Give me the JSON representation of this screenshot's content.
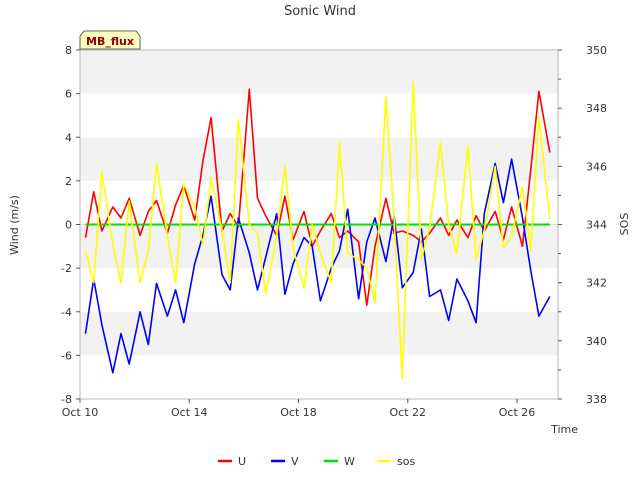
{
  "chart_data": {
    "type": "line",
    "title": "Sonic Wind",
    "site_label": "MB_flux",
    "xlabel": "Time",
    "ylabel": "Wind (m/s)",
    "ylabel_right": "SOS",
    "x_domain_days": [
      0,
      17.5
    ],
    "x_ticks": [
      {
        "day": 0,
        "label": "Oct 10"
      },
      {
        "day": 4,
        "label": "Oct 14"
      },
      {
        "day": 8,
        "label": "Oct 18"
      },
      {
        "day": 12,
        "label": "Oct 22"
      },
      {
        "day": 16,
        "label": "Oct 26"
      }
    ],
    "ylim": [
      -8,
      8
    ],
    "y_ticks": [
      -8,
      -6,
      -4,
      -2,
      0,
      2,
      4,
      6,
      8
    ],
    "ylim_right": [
      338,
      350
    ],
    "y_ticks_right": [
      338,
      340,
      342,
      344,
      346,
      348,
      350
    ],
    "series": [
      {
        "name": "U",
        "axis": "left",
        "color": "#ff0000",
        "x": [
          0.2,
          0.5,
          0.8,
          1.2,
          1.5,
          1.8,
          2.2,
          2.5,
          2.8,
          3.2,
          3.5,
          3.8,
          4.2,
          4.5,
          4.8,
          5.2,
          5.5,
          5.8,
          6.2,
          6.5,
          6.8,
          7.2,
          7.5,
          7.8,
          8.2,
          8.5,
          8.8,
          9.2,
          9.5,
          9.8,
          10.2,
          10.5,
          10.8,
          11.2,
          11.5,
          11.8,
          12.2,
          12.5,
          12.8,
          13.2,
          13.5,
          13.8,
          14.2,
          14.5,
          14.8,
          15.2,
          15.5,
          15.8,
          16.2,
          16.5,
          16.8,
          17.2
        ],
        "values": [
          -0.6,
          1.5,
          -0.3,
          0.8,
          0.3,
          1.2,
          -0.5,
          0.6,
          1.1,
          -0.4,
          0.9,
          1.8,
          0.2,
          2.9,
          4.9,
          -0.3,
          0.5,
          -0.1,
          6.2,
          1.2,
          0.4,
          -0.5,
          1.3,
          -0.7,
          0.6,
          -1.0,
          -0.3,
          0.5,
          -0.6,
          -0.3,
          -0.8,
          -3.7,
          -1.0,
          1.2,
          -0.4,
          -0.3,
          -0.5,
          -0.8,
          -0.4,
          0.3,
          -0.5,
          0.2,
          -0.6,
          0.4,
          -0.3,
          0.6,
          -0.7,
          0.8,
          -1.0,
          2.5,
          6.1,
          3.3
        ]
      },
      {
        "name": "V",
        "axis": "left",
        "color": "#0000ff",
        "x": [
          0.2,
          0.5,
          0.8,
          1.2,
          1.5,
          1.8,
          2.2,
          2.5,
          2.8,
          3.2,
          3.5,
          3.8,
          4.2,
          4.5,
          4.8,
          5.2,
          5.5,
          5.8,
          6.2,
          6.5,
          6.8,
          7.2,
          7.5,
          7.8,
          8.2,
          8.5,
          8.8,
          9.2,
          9.5,
          9.8,
          10.2,
          10.5,
          10.8,
          11.2,
          11.5,
          11.8,
          12.2,
          12.5,
          12.8,
          13.2,
          13.5,
          13.8,
          14.2,
          14.5,
          14.8,
          15.2,
          15.5,
          15.8,
          16.2,
          16.5,
          16.8,
          17.2
        ],
        "values": [
          -5.0,
          -2.5,
          -4.6,
          -6.8,
          -5.0,
          -6.4,
          -4.0,
          -5.5,
          -2.7,
          -4.2,
          -3.0,
          -4.5,
          -1.8,
          -0.5,
          1.3,
          -2.3,
          -3.0,
          0.3,
          -1.3,
          -3.0,
          -1.5,
          0.5,
          -3.2,
          -1.8,
          -0.6,
          -1.0,
          -3.5,
          -2.0,
          -1.2,
          0.7,
          -3.4,
          -0.8,
          0.3,
          -1.7,
          0.4,
          -2.9,
          -2.2,
          -0.2,
          -3.3,
          -3.0,
          -4.4,
          -2.5,
          -3.5,
          -4.5,
          0.5,
          2.8,
          1.0,
          3.0,
          0.3,
          -2.1,
          -4.2,
          -3.3
        ]
      },
      {
        "name": "W",
        "axis": "left",
        "color": "#00dd00",
        "x": [
          0.2,
          17.2
        ],
        "values": [
          0.0,
          0.0
        ]
      },
      {
        "name": "sos",
        "axis": "right",
        "color": "#ffff00",
        "x": [
          0.2,
          0.5,
          0.8,
          1.2,
          1.5,
          1.8,
          2.2,
          2.5,
          2.8,
          3.2,
          3.5,
          3.8,
          4.2,
          4.5,
          4.8,
          5.2,
          5.5,
          5.8,
          6.2,
          6.5,
          6.8,
          7.2,
          7.5,
          7.8,
          8.2,
          8.5,
          8.8,
          9.2,
          9.5,
          9.8,
          10.2,
          10.5,
          10.8,
          11.2,
          11.5,
          11.8,
          12.2,
          12.5,
          12.8,
          13.2,
          13.5,
          13.8,
          14.2,
          14.5,
          14.8,
          15.2,
          15.5,
          15.8,
          16.2,
          16.5,
          16.8,
          17.2
        ],
        "values": [
          343.1,
          342.0,
          345.8,
          343.3,
          342.0,
          344.8,
          342.0,
          343.1,
          346.1,
          343.6,
          342.0,
          345.4,
          344.6,
          343.3,
          345.6,
          343.8,
          342.0,
          347.6,
          344.0,
          343.7,
          341.6,
          343.6,
          346.0,
          343.2,
          341.8,
          344.0,
          343.0,
          342.0,
          346.8,
          343.0,
          342.8,
          342.5,
          341.3,
          348.4,
          344.2,
          338.7,
          348.9,
          342.8,
          343.9,
          346.8,
          344.0,
          343.0,
          346.7,
          342.8,
          343.8,
          346.0,
          343.2,
          343.6,
          345.3,
          343.1,
          347.7,
          344.2
        ]
      }
    ],
    "legend_position": "bottom-center"
  }
}
